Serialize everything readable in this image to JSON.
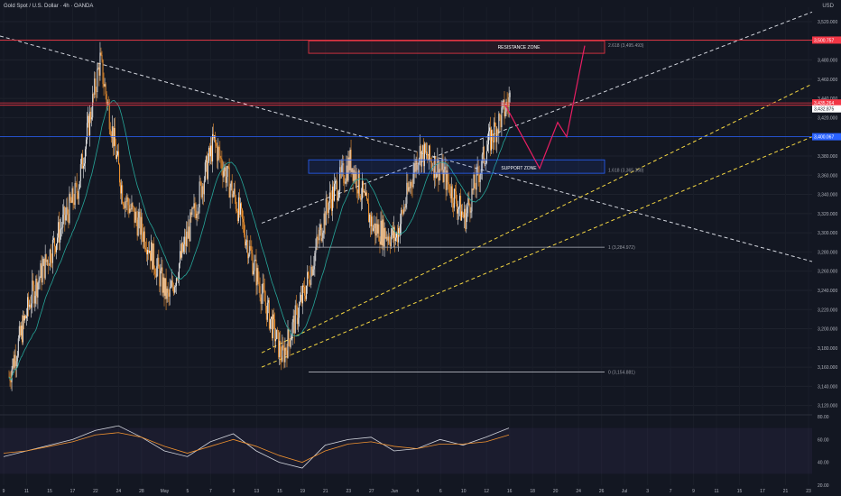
{
  "header": {
    "title": "Gold Spot / U.S. Dollar · 4h · OANDA",
    "currency": "USD"
  },
  "chart_data": [
    {
      "type": "candlestick",
      "title": "Gold Spot / U.S. Dollar · 4h · OANDA",
      "y_axis_label": "USD",
      "ylim": [
        3115,
        3535
      ],
      "y_ticks": [
        3120,
        3140,
        3160,
        3180,
        3200,
        3220,
        3240,
        3260,
        3280,
        3300,
        3320,
        3340,
        3360,
        3380,
        3400,
        3420,
        3440,
        3460,
        3480,
        3500,
        3520
      ],
      "x_tick_labels": [
        "9",
        "11",
        "15",
        "17",
        "22",
        "24",
        "28",
        "May",
        "5",
        "7",
        "9",
        "13",
        "15",
        "19",
        "21",
        "23",
        "27",
        "Jun",
        "4",
        "6",
        "10",
        "12",
        "16",
        "18",
        "20",
        "24",
        "26",
        "Jul",
        "3",
        "7",
        "9",
        "11",
        "15",
        "17",
        "21",
        "23"
      ],
      "x_tick_index": [
        0,
        1,
        2,
        3,
        4,
        5,
        6,
        7,
        8,
        9,
        10,
        11,
        12,
        13,
        14,
        15,
        16,
        17,
        18,
        19,
        20,
        21,
        22,
        23,
        24,
        25,
        26,
        27,
        28,
        29,
        30,
        31,
        32,
        33,
        34,
        35
      ],
      "price_path": [
        [
          0,
          3150
        ],
        [
          1,
          3235
        ],
        [
          2,
          3290
        ],
        [
          3,
          3345
        ],
        [
          4,
          3480
        ],
        [
          5,
          3340
        ],
        [
          6,
          3295
        ],
        [
          7,
          3230
        ],
        [
          8,
          3310
        ],
        [
          9,
          3395
        ],
        [
          10,
          3330
        ],
        [
          11,
          3245
        ],
        [
          12,
          3170
        ],
        [
          13,
          3240
        ],
        [
          14,
          3330
        ],
        [
          15,
          3375
        ],
        [
          16,
          3305
        ],
        [
          17,
          3295
        ],
        [
          18,
          3385
        ],
        [
          19,
          3365
        ],
        [
          20,
          3315
        ],
        [
          21,
          3390
        ],
        [
          22,
          3440
        ]
      ],
      "horizontal_levels": [
        {
          "value": 3500.757,
          "label": "3,500.757",
          "color": "#f23645"
        },
        {
          "value": 3435.264,
          "label": "3,435.264",
          "color": "#f23645"
        },
        {
          "value": 3432.875,
          "label": "3,432.875",
          "color": "#f23645"
        },
        {
          "value": 3400.067,
          "label": "3,400.067",
          "color": "#2962ff"
        }
      ],
      "fib_labels": [
        {
          "text": "2.618 (3,495.493)",
          "value": 3495.493
        },
        {
          "text": "1.618 (3,365.368)",
          "value": 3365.368
        },
        {
          "text": "1 (3,284.972)",
          "value": 3284.972
        },
        {
          "text": "0 (3,154.881)",
          "value": 3154.881
        }
      ],
      "annotations": [
        "RESISTANCE ZONE",
        "SUPPORT ZONE"
      ],
      "colors": {
        "up": "#e8e8e8",
        "down": "#f0922f",
        "ma": "#26a69a",
        "resistance": "#f23645",
        "support": "#2962ff",
        "channel": "#f5d742"
      }
    },
    {
      "type": "line",
      "title": "",
      "ylim": [
        20,
        80
      ],
      "y_ticks": [
        20,
        40,
        60,
        80
      ],
      "series": [
        {
          "values": [
            45,
            50,
            55,
            60,
            68,
            72,
            62,
            50,
            45,
            58,
            65,
            50,
            40,
            35,
            55,
            60,
            62,
            50,
            52,
            60,
            55,
            62,
            70
          ],
          "color": "#d1d4dc"
        },
        {
          "values": [
            48,
            50,
            54,
            58,
            64,
            66,
            62,
            54,
            48,
            54,
            60,
            54,
            46,
            40,
            50,
            56,
            58,
            54,
            52,
            56,
            56,
            58,
            64
          ],
          "color": "#f0922f"
        }
      ],
      "bands": [
        30,
        70
      ]
    }
  ]
}
